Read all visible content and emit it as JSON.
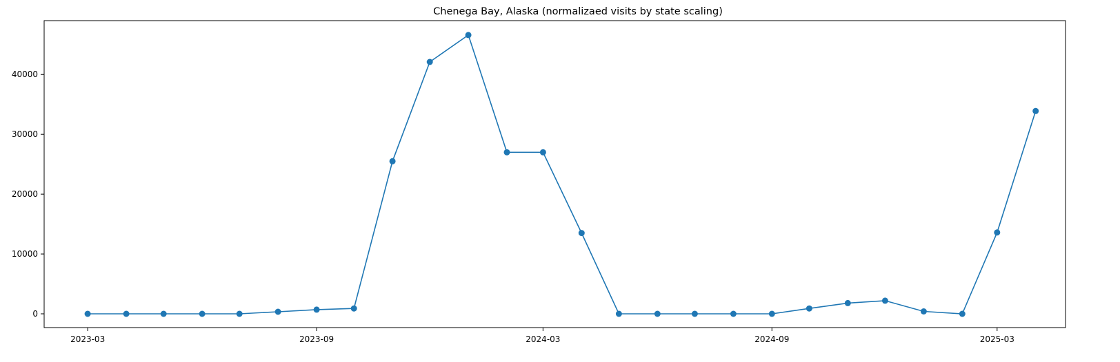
{
  "chart_data": {
    "type": "line",
    "title": "Chenega Bay, Alaska (normalizaed visits by state scaling)",
    "xlabel": "",
    "ylabel": "",
    "x": [
      "2023-03-01",
      "2023-04-01",
      "2023-05-01",
      "2023-06-01",
      "2023-07-01",
      "2023-08-01",
      "2023-09-01",
      "2023-10-01",
      "2023-11-01",
      "2023-12-01",
      "2024-01-01",
      "2024-02-01",
      "2024-03-01",
      "2024-04-01",
      "2024-05-01",
      "2024-06-01",
      "2024-07-01",
      "2024-08-01",
      "2024-09-01",
      "2024-10-01",
      "2024-11-01",
      "2024-12-01",
      "2025-01-01",
      "2025-02-01",
      "2025-03-01",
      "2025-04-01"
    ],
    "series": [
      {
        "values": [
          0,
          0,
          0,
          0,
          0,
          350,
          700,
          900,
          25500,
          42100,
          46600,
          27000,
          27000,
          13500,
          0,
          0,
          0,
          0,
          0,
          900,
          1800,
          2200,
          400,
          0,
          13600,
          33900
        ]
      }
    ],
    "xlim": [
      "2023-01-25",
      "2025-04-25"
    ],
    "ylim": [
      -2300,
      49000
    ],
    "x_ticks": [
      "2023-03",
      "2023-09",
      "2024-03",
      "2024-09",
      "2025-03"
    ],
    "y_ticks": [
      0,
      10000,
      20000,
      30000,
      40000
    ],
    "grid": false,
    "line_color": "#1f77b4",
    "marker": "circle"
  }
}
